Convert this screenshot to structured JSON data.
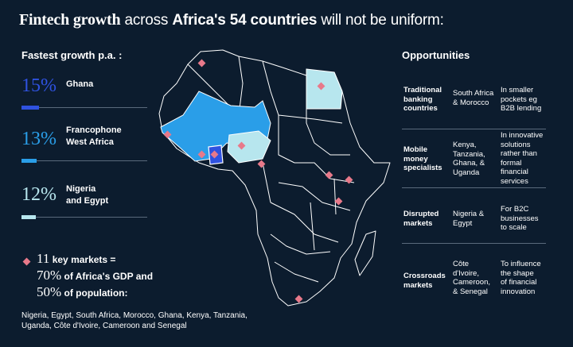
{
  "title": {
    "part1": "Fintech growth",
    "part2": " across ",
    "part3": "Africa's 54 countries",
    "part4": " will not be uniform:"
  },
  "fastest_growth": {
    "heading": "Fastest growth p.a. :",
    "rows": [
      {
        "pct": "15%",
        "label_line1": "Ghana",
        "label_line2": "",
        "color": "#2f52e0",
        "fill": 0.15
      },
      {
        "pct": "13%",
        "label_line1": "Francophone",
        "label_line2": "West Africa",
        "color": "#2a9ee8",
        "fill": 0.13
      },
      {
        "pct": "12%",
        "label_line1": "Nigeria",
        "label_line2": "and Egypt",
        "color": "#b7e6ee",
        "fill": 0.12
      }
    ]
  },
  "key_markets": {
    "num1": "11",
    "text1": " key markets =",
    "num2": "70%",
    "text2": " of Africa's GDP and",
    "num3": "50%",
    "text3": " of population:",
    "list_line1": "Nigeria, Egypt, South Africa, Morocco, Ghana, Kenya, Tanzania,",
    "list_line2": "Uganda, Côte d'Ivoire, Cameroon and Senegal"
  },
  "opportunities": {
    "heading": "Opportunities",
    "rows": [
      {
        "type": [
          "Traditional",
          "banking",
          "countries"
        ],
        "where": [
          "South Africa",
          "& Morocco"
        ],
        "what": [
          "In smaller",
          "pockets eg",
          "B2B lending"
        ]
      },
      {
        "type": [
          "Mobile",
          "money",
          "specialists"
        ],
        "where": [
          "Kenya,",
          "Tanzania,",
          "Ghana, &",
          "Uganda"
        ],
        "what": [
          "In innovative",
          "solutions",
          "rather than",
          "formal",
          "financial",
          "services"
        ]
      },
      {
        "type": [
          "Disrupted",
          "markets"
        ],
        "where": [
          "Nigeria &",
          "Egypt"
        ],
        "what": [
          "For B2C",
          "businesses",
          "to scale"
        ]
      },
      {
        "type": [
          "Crossroads",
          "markets"
        ],
        "where": [
          "Côte",
          "d'Ivoire,",
          "Cameroon,",
          "& Senegal"
        ],
        "what": [
          "To influence",
          "the shape",
          "of financial",
          "innovation"
        ]
      }
    ]
  },
  "colors": {
    "background": "#0c1c2e",
    "marker": "#e8798a",
    "ghana": "#2f52e0",
    "francophone": "#2a9ee8",
    "nigeria_egypt": "#b7e6ee",
    "map_fill": "#0c1c2e",
    "map_border": "#ffffff"
  }
}
